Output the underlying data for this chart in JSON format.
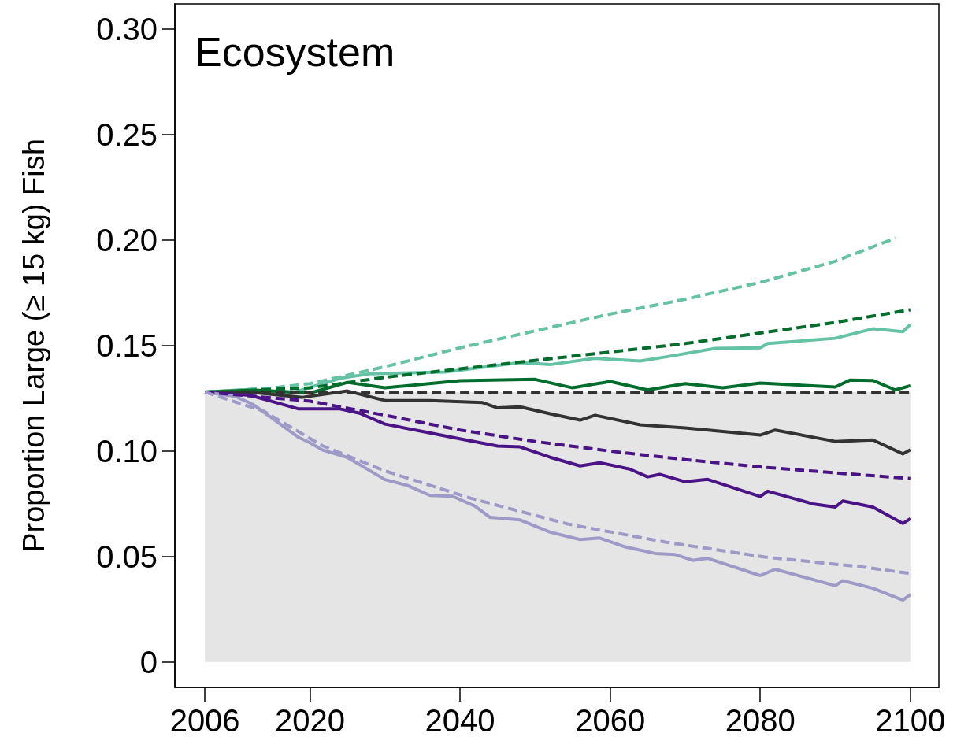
{
  "chart_data": {
    "type": "line",
    "ylabel": "Proportion Large (≥ 15 kg) Fish",
    "annotations": [
      "Ecosystem"
    ],
    "xlim": [
      2002,
      2103.8
    ],
    "xticks": [
      2006,
      2020,
      2040,
      2060,
      2080,
      2100
    ],
    "ylim": [
      -0.012,
      0.312
    ],
    "yticks": [
      0,
      0.05,
      {
        "value": 0.1,
        "label": "0.10"
      },
      0.15,
      {
        "value": 0.2,
        "label": "0.20"
      },
      0.25,
      {
        "value": 0.3,
        "label": "0.30"
      }
    ],
    "bands": [
      {
        "axis": "y",
        "from": 0,
        "to": 0.128,
        "color": "#e5e5e5"
      }
    ],
    "series": [
      {
        "color": "#66c2a5",
        "line_style": "dashed",
        "x": [
          2006,
          2015,
          2020,
          2025,
          2030,
          2040,
          2050,
          2060,
          2070,
          2080,
          2090,
          2098
        ],
        "values": [
          0.128,
          0.13,
          0.132,
          0.136,
          0.14,
          0.149,
          0.157,
          0.165,
          0.172,
          0.18,
          0.19,
          0.201
        ]
      },
      {
        "color": "#006d2c",
        "line_style": "dashed",
        "x": [
          2006,
          2020,
          2030,
          2040,
          2050,
          2060,
          2070,
          2080,
          2090,
          2100
        ],
        "values": [
          0.128,
          0.13,
          0.135,
          0.139,
          0.143,
          0.147,
          0.151,
          0.156,
          0.161,
          0.167
        ]
      },
      {
        "color": "#66c2a5",
        "line_style": "solid",
        "x": [
          2006,
          2012,
          2018,
          2024,
          2028,
          2038,
          2048,
          2052,
          2058,
          2064,
          2068,
          2074,
          2080,
          2081,
          2090,
          2095,
          2099,
          2100
        ],
        "values": [
          0.128,
          0.129,
          0.128,
          0.1345,
          0.1367,
          0.1375,
          0.142,
          0.141,
          0.144,
          0.1427,
          0.145,
          0.1487,
          0.149,
          0.151,
          0.1535,
          0.158,
          0.1566,
          0.16
        ]
      },
      {
        "color": "#006d2c",
        "line_style": "solid",
        "x": [
          2006,
          2012,
          2020,
          2025,
          2030,
          2040,
          2050,
          2055,
          2060,
          2065,
          2070,
          2075,
          2080,
          2090,
          2092,
          2095,
          2098,
          2100
        ],
        "values": [
          0.128,
          0.129,
          0.1275,
          0.1326,
          0.13,
          0.1334,
          0.134,
          0.13,
          0.133,
          0.129,
          0.132,
          0.13,
          0.1323,
          0.1304,
          0.1337,
          0.1335,
          0.129,
          0.131
        ]
      },
      {
        "color": "#333333",
        "line_style": "dashed",
        "x": [
          2006,
          2100
        ],
        "values": [
          0.128,
          0.128
        ]
      },
      {
        "color": "#333333",
        "line_style": "solid",
        "x": [
          2006,
          2012,
          2019,
          2025,
          2030,
          2036,
          2043,
          2045,
          2048,
          2052,
          2056,
          2058,
          2064,
          2070,
          2080,
          2082,
          2090,
          2095,
          2099,
          2100
        ],
        "values": [
          0.128,
          0.128,
          0.1255,
          0.1285,
          0.124,
          0.124,
          0.123,
          0.1205,
          0.121,
          0.1177,
          0.1147,
          0.117,
          0.1125,
          0.111,
          0.1076,
          0.11,
          0.1046,
          0.1053,
          0.0987,
          0.1006
        ]
      },
      {
        "color": "#4a1486",
        "line_style": "dashed",
        "x": [
          2006,
          2020,
          2030,
          2040,
          2050,
          2060,
          2070,
          2080,
          2090,
          2100
        ],
        "values": [
          0.128,
          0.1237,
          0.117,
          0.11,
          0.1046,
          0.1,
          0.096,
          0.0925,
          0.0897,
          0.087
        ]
      },
      {
        "color": "#4a1486",
        "line_style": "solid",
        "x": [
          2006,
          2012,
          2018.5,
          2024,
          2026.6,
          2030,
          2035,
          2039,
          2045,
          2048,
          2052,
          2056,
          2058.6,
          2062.6,
          2065,
          2066.6,
          2070,
          2073,
          2080,
          2081,
          2087,
          2090,
          2091,
          2095,
          2099,
          2100
        ],
        "values": [
          0.128,
          0.1265,
          0.12,
          0.12,
          0.118,
          0.1128,
          0.1093,
          0.1065,
          0.1024,
          0.102,
          0.0971,
          0.093,
          0.0945,
          0.0915,
          0.0878,
          0.089,
          0.0855,
          0.0866,
          0.0785,
          0.081,
          0.075,
          0.0735,
          0.0764,
          0.0735,
          0.0657,
          0.068
        ]
      },
      {
        "color": "#9e9ac8",
        "line_style": "dashed",
        "x": [
          2006,
          2013.8,
          2021.7,
          2030,
          2041.3,
          2054.4,
          2067.5,
          2080.6,
          2093.8,
          2100
        ],
        "values": [
          0.128,
          0.119,
          0.1025,
          0.0906,
          0.0778,
          0.0654,
          0.0568,
          0.0498,
          0.045,
          0.042
        ]
      },
      {
        "color": "#9e9ac8",
        "line_style": "solid",
        "x": [
          2006,
          2010,
          2012.5,
          2018.5,
          2020,
          2021.7,
          2025,
          2030,
          2033,
          2036,
          2039,
          2042,
          2044,
          2048,
          2052,
          2056,
          2058.6,
          2062,
          2066,
          2068.6,
          2071,
          2073,
          2080,
          2082,
          2090,
          2091,
          2095,
          2099,
          2100
        ],
        "values": [
          0.128,
          0.126,
          0.122,
          0.1065,
          0.104,
          0.1005,
          0.097,
          0.0865,
          0.0837,
          0.079,
          0.0786,
          0.0739,
          0.0686,
          0.0674,
          0.0616,
          0.0581,
          0.0588,
          0.0546,
          0.0515,
          0.051,
          0.0482,
          0.0492,
          0.041,
          0.044,
          0.0362,
          0.0386,
          0.035,
          0.0294,
          0.032
        ]
      }
    ]
  }
}
